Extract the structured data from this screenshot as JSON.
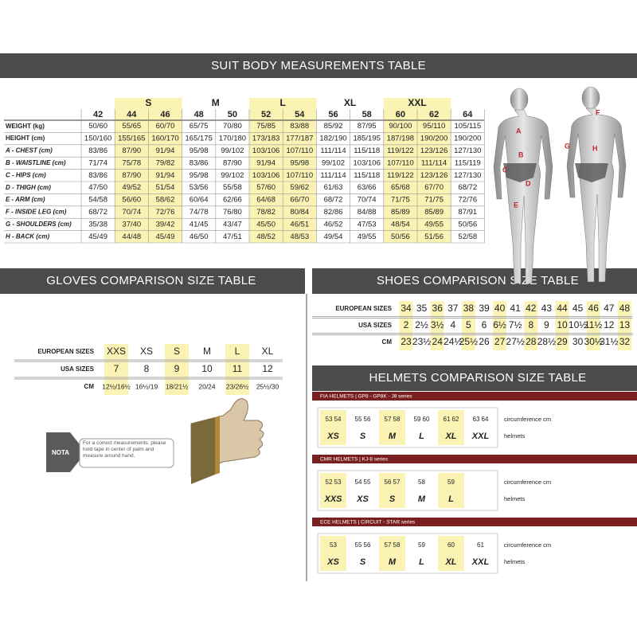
{
  "suit": {
    "title": "SUIT BODY MEASUREMENTS TABLE",
    "groups": [
      "S",
      "M",
      "L",
      "XL",
      "XXL"
    ],
    "sizes": [
      "42",
      "44",
      "46",
      "48",
      "50",
      "52",
      "54",
      "56",
      "58",
      "60",
      "62",
      "64"
    ],
    "rows": [
      {
        "label": "WEIGHT (kg)",
        "values": [
          "50/60",
          "55/65",
          "60/70",
          "65/75",
          "70/80",
          "75/85",
          "83/88",
          "85/92",
          "87/95",
          "90/100",
          "95/110",
          "105/115"
        ]
      },
      {
        "label": "HEIGHT (cm)",
        "values": [
          "150/160",
          "155/165",
          "160/170",
          "165/175",
          "170/180",
          "173/183",
          "177/187",
          "182/190",
          "185/195",
          "187/198",
          "190/200",
          "190/200"
        ]
      },
      {
        "label": "A - CHEST (cm)",
        "values": [
          "83/86",
          "87/90",
          "91/94",
          "95/98",
          "99/102",
          "103/106",
          "107/110",
          "111/114",
          "115/118",
          "119/122",
          "123/126",
          "127/130"
        ]
      },
      {
        "label": "B - WAISTLINE (cm)",
        "values": [
          "71/74",
          "75/78",
          "79/82",
          "83/86",
          "87/90",
          "91/94",
          "95/98",
          "99/102",
          "103/106",
          "107/110",
          "111/114",
          "115/119"
        ]
      },
      {
        "label": "C - HIPS (cm)",
        "values": [
          "83/86",
          "87/90",
          "91/94",
          "95/98",
          "99/102",
          "103/106",
          "107/110",
          "111/114",
          "115/118",
          "119/122",
          "123/126",
          "127/130"
        ]
      },
      {
        "label": "D - THIGH (cm)",
        "values": [
          "47/50",
          "49/52",
          "51/54",
          "53/56",
          "55/58",
          "57/60",
          "59/62",
          "61/63",
          "63/66",
          "65/68",
          "67/70",
          "68/72"
        ]
      },
      {
        "label": "E - ARM (cm)",
        "values": [
          "54/58",
          "56/60",
          "58/62",
          "60/64",
          "62/66",
          "64/68",
          "66/70",
          "68/72",
          "70/74",
          "71/75",
          "71/75",
          "72/76"
        ]
      },
      {
        "label": "F - INSIDE LEG (cm)",
        "values": [
          "68/72",
          "70/74",
          "72/76",
          "74/78",
          "76/80",
          "78/82",
          "80/84",
          "82/86",
          "84/88",
          "85/89",
          "85/89",
          "87/91"
        ]
      },
      {
        "label": "G - SHOULDERS (cm)",
        "values": [
          "35/38",
          "37/40",
          "39/42",
          "41/45",
          "43/47",
          "45/50",
          "46/51",
          "46/52",
          "47/53",
          "48/54",
          "49/55",
          "50/56"
        ]
      },
      {
        "label": "H - BACK (cm)",
        "values": [
          "45/49",
          "44/48",
          "45/49",
          "46/50",
          "47/51",
          "48/52",
          "48/53",
          "49/54",
          "49/55",
          "50/56",
          "51/56",
          "52/58"
        ]
      }
    ],
    "figure_labels": [
      "A",
      "B",
      "C",
      "D",
      "E",
      "F",
      "G",
      "H"
    ]
  },
  "gloves": {
    "title": "GLOVES COMPARISON SIZE TABLE",
    "rows": [
      {
        "label": "EUROPEAN SIZES",
        "values": [
          "XXS",
          "XS",
          "S",
          "M",
          "L",
          "XL"
        ]
      },
      {
        "label": "USA SIZES",
        "values": [
          "7",
          "8",
          "9",
          "10",
          "11",
          "12"
        ]
      },
      {
        "label": "CM",
        "values": [
          "12½/16½",
          "16½/19",
          "18/21½",
          "20/24",
          "23/26½",
          "25½/30"
        ]
      }
    ],
    "nota_label": "NOTA",
    "nota_text": "For a correct measurements: please hold tape in center of palm and measure around hand."
  },
  "shoes": {
    "title": "SHOES COMPARISON SIZE TABLE",
    "rows": [
      {
        "label": "EUROPEAN SIZES",
        "values": [
          "34",
          "35",
          "36",
          "37",
          "38",
          "39",
          "40",
          "41",
          "42",
          "43",
          "44",
          "45",
          "46",
          "47",
          "48"
        ]
      },
      {
        "label": "USA SIZES",
        "values": [
          "2",
          "2½",
          "3½",
          "4",
          "5",
          "6",
          "6½",
          "7½",
          "8",
          "9",
          "10",
          "10½",
          "11½",
          "12",
          "13"
        ]
      },
      {
        "label": "CM",
        "values": [
          "23",
          "23½",
          "24",
          "24½",
          "25½",
          "26",
          "27",
          "27½",
          "28",
          "28½",
          "29",
          "30",
          "30½",
          "31½",
          "32"
        ]
      }
    ]
  },
  "helmets": {
    "title": "HELMETS COMPARISON SIZE TABLE",
    "sections": [
      {
        "name": "FIA HELMETS | GP8 - GP8K - J8 series",
        "row1": "circumference cm",
        "row2": "helmets",
        "groups": [
          {
            "sizes": [
              "53",
              "54"
            ],
            "label": "XS"
          },
          {
            "sizes": [
              "55",
              "56"
            ],
            "label": "S"
          },
          {
            "sizes": [
              "57",
              "58"
            ],
            "label": "M"
          },
          {
            "sizes": [
              "59",
              "60"
            ],
            "label": "L"
          },
          {
            "sizes": [
              "61",
              "62"
            ],
            "label": "XL"
          },
          {
            "sizes": [
              "63",
              "64"
            ],
            "label": "XXL"
          }
        ]
      },
      {
        "name": "CMR HELMETS | KJ-8 series",
        "row1": "circumference cm",
        "row2": "helmets",
        "groups": [
          {
            "sizes": [
              "52",
              "53"
            ],
            "label": "XXS"
          },
          {
            "sizes": [
              "54",
              "55"
            ],
            "label": "XS"
          },
          {
            "sizes": [
              "56",
              "57"
            ],
            "label": "S"
          },
          {
            "sizes": [
              "58"
            ],
            "label": "M"
          },
          {
            "sizes": [
              "59"
            ],
            "label": "L"
          }
        ]
      },
      {
        "name": "ECE HELMETS | CIRCUIT - STAR series",
        "row1": "circumference cm",
        "row2": "helmets",
        "groups": [
          {
            "sizes": [
              "53"
            ],
            "label": "XS"
          },
          {
            "sizes": [
              "55",
              "56"
            ],
            "label": "S"
          },
          {
            "sizes": [
              "57",
              "58"
            ],
            "label": "M"
          },
          {
            "sizes": [
              "59"
            ],
            "label": "L"
          },
          {
            "sizes": [
              "60"
            ],
            "label": "XL"
          },
          {
            "sizes": [
              "61"
            ],
            "label": "XXL"
          }
        ]
      }
    ]
  }
}
